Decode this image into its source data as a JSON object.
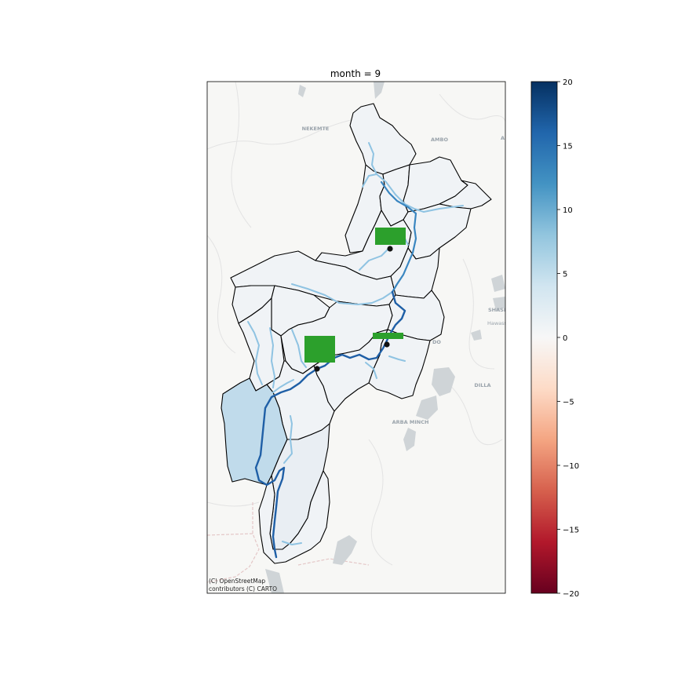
{
  "title": "month = 9",
  "attribution": {
    "line1": "(C) OpenStreetMap",
    "line2": "contributors (C) CARTO"
  },
  "basemap_labels": [
    {
      "name": "nekemte",
      "text": "NEKEMTE"
    },
    {
      "name": "ambo",
      "text": "AMBO"
    },
    {
      "name": "shashemene",
      "text": "SHASI"
    },
    {
      "name": "hawassa",
      "text": "Hawass"
    },
    {
      "name": "dilla",
      "text": "DILLA"
    },
    {
      "name": "arba-minch",
      "text": "ARBA MINCH"
    },
    {
      "name": "sodo",
      "text": "DO"
    },
    {
      "name": "edge-a",
      "text": "A"
    }
  ],
  "colorbar": {
    "min": -20,
    "max": 20,
    "colormap": "RdBu",
    "ticks": [
      "20",
      "15",
      "10",
      "5",
      "0",
      "−5",
      "−10",
      "−15",
      "−20"
    ]
  },
  "colors": {
    "basin_outline": "#000000",
    "highlight_subbasin": "#c0dbeb",
    "near_zero_subbasin": "#f0f3f6",
    "river_major": "#1f5fa6",
    "river_minor": "#8fc3e2",
    "marker_bar": "#2ca02c",
    "gauge_point": "#111111",
    "basemap_land": "#f7f7f5",
    "basemap_water": "#cfd4d7"
  }
}
